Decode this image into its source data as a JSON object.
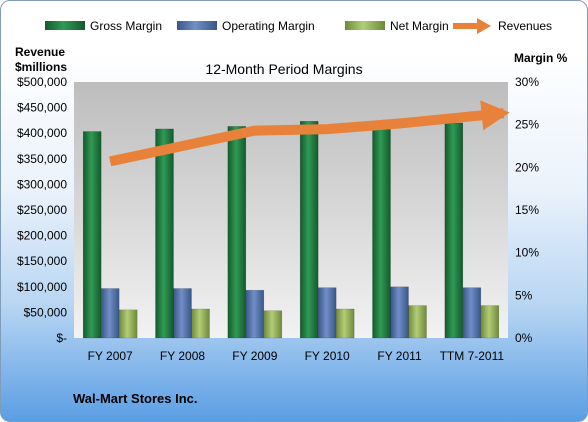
{
  "company": "Wal-Mart Stores Inc.",
  "left_axis_title": [
    "Revenue",
    "$millions"
  ],
  "right_axis_title": "Margin %",
  "chart_data": {
    "type": "bar",
    "title": "12-Month Period Margins",
    "categories": [
      "FY 2007",
      "FY 2008",
      "FY 2009",
      "FY 2010",
      "FY 2011",
      "TTM 7-2011"
    ],
    "y_left": {
      "range": [
        0,
        500000
      ],
      "ticks": [
        "$-",
        "$50,000",
        "$100,000",
        "$150,000",
        "$200,000",
        "$250,000",
        "$300,000",
        "$350,000",
        "$400,000",
        "$450,000",
        "$500,000"
      ]
    },
    "y_right": {
      "range": [
        0,
        30
      ],
      "ticks": [
        "0%",
        "5%",
        "10%",
        "15%",
        "20%",
        "25%",
        "30%"
      ]
    },
    "series": [
      {
        "name": "Gross Margin",
        "axis": "right",
        "kind": "bar",
        "color": "#1e7b3f",
        "values": [
          24.2,
          24.5,
          24.8,
          25.4,
          25.3,
          25.2
        ]
      },
      {
        "name": "Operating Margin",
        "axis": "right",
        "kind": "bar",
        "color": "#4f6fa8",
        "values": [
          5.8,
          5.8,
          5.6,
          5.9,
          6.0,
          5.9
        ]
      },
      {
        "name": "Net Margin",
        "axis": "right",
        "kind": "bar",
        "color": "#8ea852",
        "values": [
          3.3,
          3.4,
          3.2,
          3.4,
          3.8,
          3.8
        ]
      },
      {
        "name": "Revenues",
        "axis": "left",
        "kind": "line",
        "color": "#e8823a",
        "values": [
          345000,
          375000,
          405000,
          408000,
          419000,
          433000
        ]
      }
    ],
    "legend": "top",
    "grid": false
  }
}
